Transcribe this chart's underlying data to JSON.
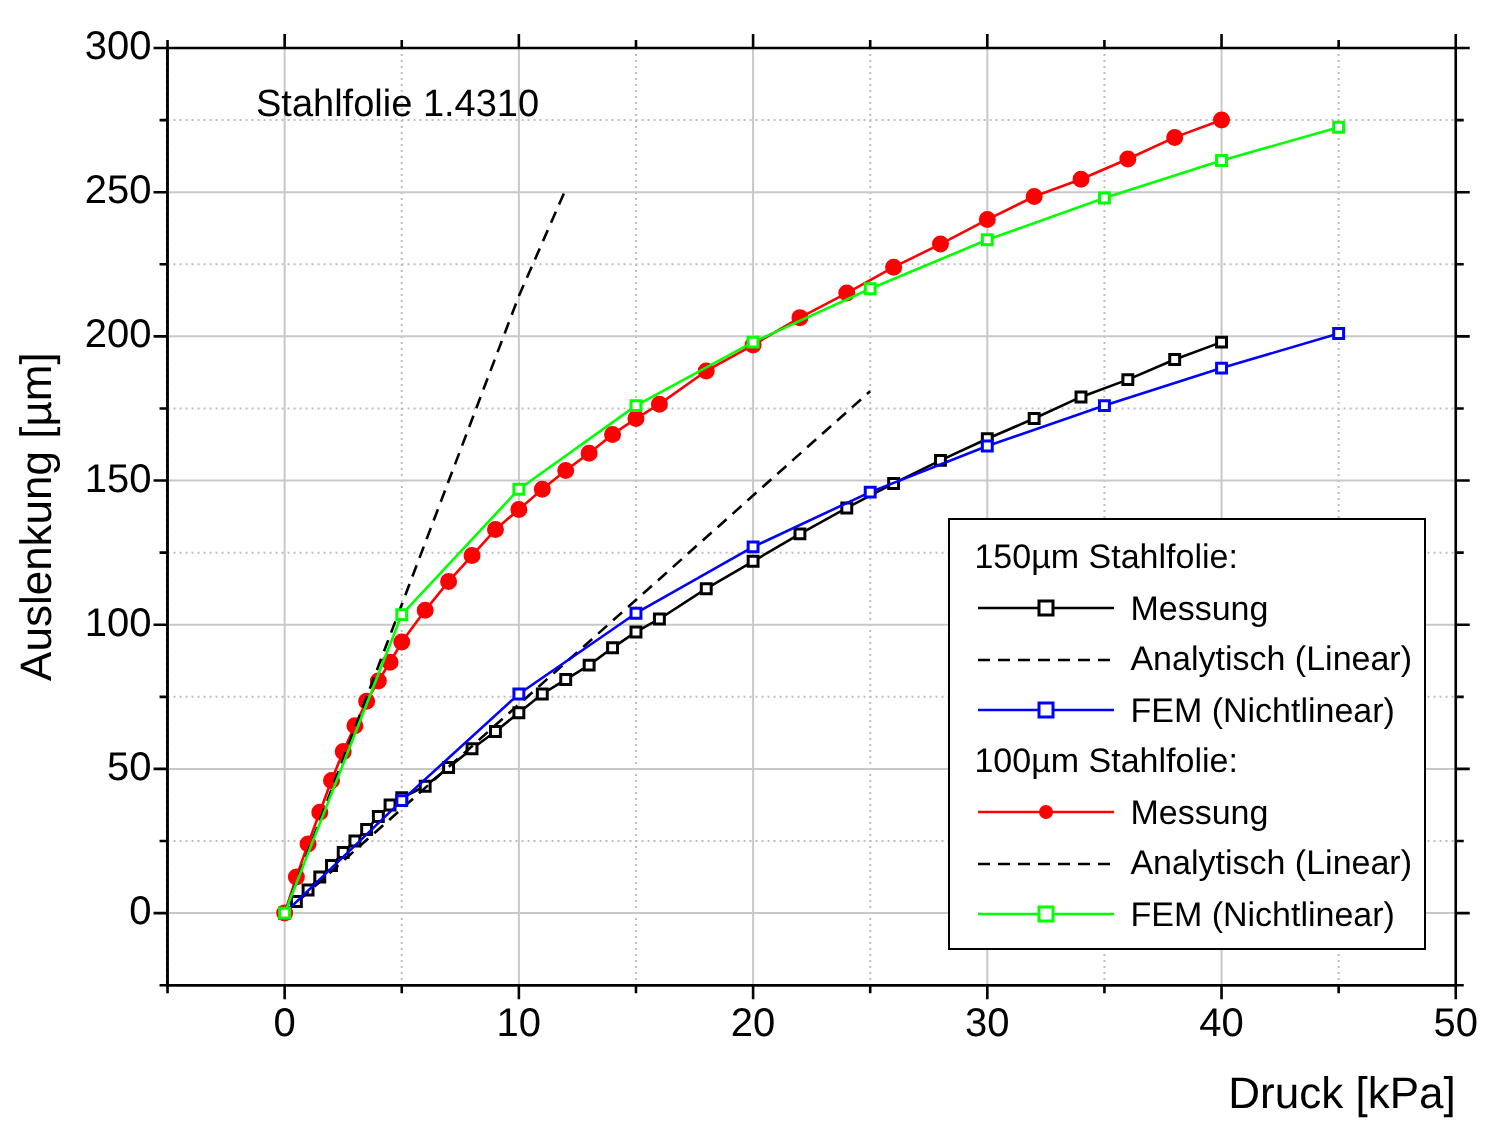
{
  "chart_data": {
    "type": "line",
    "xlabel": "Druck [kPa]",
    "ylabel": "Auslenkung [µm]",
    "annotations": [
      "Stahlfolie 1.4310",
      "150µm Stahlfolie:",
      "100µm Stahlfolie:"
    ],
    "xlim": [
      -5,
      50
    ],
    "ylim": [
      -25,
      300
    ],
    "xticks": [
      {
        "value": -5,
        "label": null
      },
      0,
      {
        "value": 5,
        "label": null
      },
      10,
      {
        "value": 15,
        "label": null
      },
      20,
      {
        "value": 25,
        "label": null
      },
      30,
      {
        "value": 35,
        "label": null
      },
      40,
      {
        "value": 45,
        "label": null
      },
      50
    ],
    "yticks": [
      {
        "value": -25,
        "label": null
      },
      0,
      {
        "value": 25,
        "label": null
      },
      50,
      {
        "value": 75,
        "label": null
      },
      100,
      {
        "value": 125,
        "label": null
      },
      150,
      {
        "value": 175,
        "label": null
      },
      200,
      {
        "value": 225,
        "label": null
      },
      250,
      {
        "value": 275,
        "label": null
      },
      300
    ],
    "grid": true,
    "legend": "bottom right",
    "series": [
      {
        "name": "Messung",
        "color": "#000000",
        "marker": "square",
        "line_style": "solid",
        "x": [
          0,
          0.5,
          1,
          1.5,
          2,
          2.5,
          3,
          3.5,
          4,
          4.5,
          5,
          6,
          7,
          8,
          9,
          10,
          11,
          12,
          13,
          14,
          15,
          16,
          18,
          20,
          22,
          24,
          26,
          28,
          30,
          32,
          34,
          36,
          38,
          40
        ],
        "values": [
          0,
          4,
          8,
          12.5,
          16.5,
          21,
          25,
          29,
          33.5,
          37.5,
          40,
          44,
          50.5,
          57,
          63,
          69.5,
          76,
          81,
          86,
          92,
          97.5,
          102,
          112.5,
          122,
          131.5,
          140.5,
          149,
          157,
          164.5,
          171.5,
          179,
          185,
          192,
          198
        ]
      },
      {
        "name": "Analytisch (Linear)",
        "color": "#000000",
        "marker": "none",
        "line_style": "dashed",
        "x": [
          0,
          25
        ],
        "values": [
          0,
          181
        ]
      },
      {
        "name": "FEM (Nichtlinear)",
        "color": "#0000ff",
        "marker": "square",
        "line_style": "solid",
        "x": [
          0,
          5,
          10,
          15,
          20,
          25,
          30,
          35,
          40,
          45
        ],
        "values": [
          0,
          39,
          76,
          104,
          127,
          146,
          162,
          176,
          189,
          201
        ]
      },
      {
        "name": "Messung",
        "color": "#ff0000",
        "marker": "circle",
        "line_style": "solid",
        "x": [
          0,
          0.5,
          1,
          1.5,
          2,
          2.5,
          3,
          3.5,
          4,
          4.5,
          5,
          6,
          7,
          8,
          9,
          10,
          11,
          12,
          13,
          14,
          15,
          16,
          18,
          20,
          22,
          24,
          26,
          28,
          30,
          32,
          34,
          36,
          38,
          40
        ],
        "values": [
          0,
          12.5,
          24,
          35,
          46,
          56,
          65,
          73.5,
          80.5,
          87,
          94,
          105,
          115,
          124,
          133,
          140,
          147,
          153.5,
          159.5,
          166,
          171.5,
          176.5,
          188,
          197,
          206.5,
          215,
          224,
          232,
          240.5,
          248.5,
          254.5,
          261.5,
          269,
          275
        ]
      },
      {
        "name": "Analytisch (Linear)",
        "color": "#000000",
        "marker": "none",
        "line_style": "dashed",
        "x": [
          0,
          10,
          12
        ],
        "values": [
          0,
          214,
          251
        ]
      },
      {
        "name": "FEM (Nichtlinear)",
        "color": "#00ff00",
        "marker": "square",
        "line_style": "solid",
        "x": [
          0,
          5,
          10,
          15,
          20,
          25,
          30,
          35,
          40,
          45
        ],
        "values": [
          0,
          103.5,
          147,
          176,
          198,
          216.5,
          233.5,
          248,
          261,
          272.5
        ]
      }
    ]
  }
}
